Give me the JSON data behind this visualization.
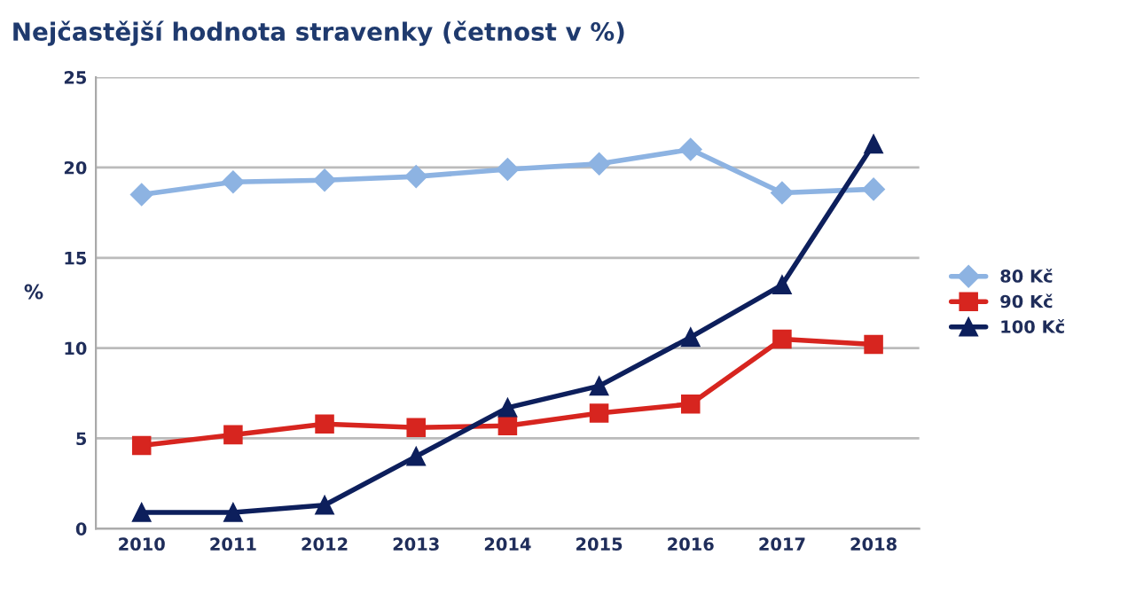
{
  "chart_data": {
    "type": "line",
    "title": "Nejčastější hodnota stravenky (četnost v %)",
    "ylabel": "%",
    "categories": [
      "2010",
      "2011",
      "2012",
      "2013",
      "2014",
      "2015",
      "2016",
      "2017",
      "2018"
    ],
    "series": [
      {
        "name": "80 Kč",
        "color": "#8db3e2",
        "marker": "diamond",
        "values": [
          18.5,
          19.2,
          19.3,
          19.5,
          19.9,
          20.2,
          21.0,
          18.6,
          18.8
        ]
      },
      {
        "name": "90 Kč",
        "color": "#d7251f",
        "marker": "square",
        "values": [
          4.6,
          5.2,
          5.8,
          5.6,
          5.7,
          6.4,
          6.9,
          10.5,
          10.2
        ]
      },
      {
        "name": "100 Kč",
        "color": "#0d1f5c",
        "marker": "triangle",
        "values": [
          0.9,
          0.9,
          1.3,
          4.0,
          6.7,
          7.9,
          10.6,
          13.5,
          21.3
        ]
      }
    ],
    "ylim": [
      0,
      25
    ],
    "yticks": [
      0,
      5,
      10,
      15,
      20,
      25
    ],
    "grid": "y",
    "legend": "right",
    "line_style": "solid"
  }
}
